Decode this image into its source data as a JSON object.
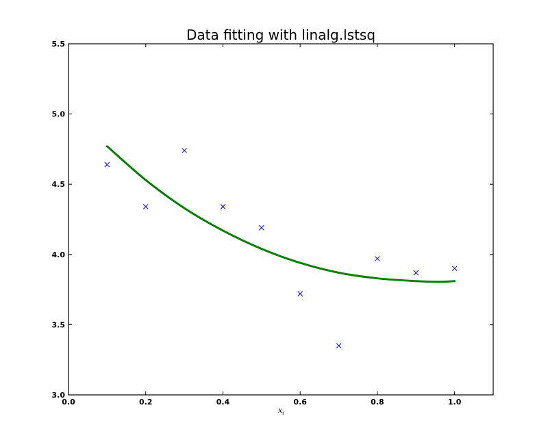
{
  "chart_data": {
    "type": "scatter",
    "title": "Data fitting with linalg.lstsq",
    "xlabel": "x",
    "xlabel_subscript": "i",
    "ylabel": "",
    "xlim": [
      0.0,
      1.1
    ],
    "ylim": [
      3.0,
      5.5
    ],
    "xticks": [
      0.0,
      0.2,
      0.4,
      0.6,
      0.8,
      1.0
    ],
    "xtick_labels": [
      "0.0",
      "0.2",
      "0.4",
      "0.6",
      "0.8",
      "1.0"
    ],
    "yticks": [
      3.0,
      3.5,
      4.0,
      4.5,
      5.0,
      5.5
    ],
    "ytick_labels": [
      "3.0",
      "3.5",
      "4.0",
      "4.5",
      "5.0",
      "5.5"
    ],
    "grid": false,
    "series": [
      {
        "type": "scatter",
        "marker": "x",
        "color": "#0000ff",
        "x": [
          0.1,
          0.2,
          0.3,
          0.4,
          0.5,
          0.6,
          0.7,
          0.8,
          0.9,
          1.0
        ],
        "y": [
          4.64,
          4.34,
          4.74,
          4.34,
          4.19,
          3.72,
          3.35,
          3.97,
          3.87,
          3.9
        ]
      },
      {
        "type": "line",
        "color": "#007f00",
        "x": [
          0.1,
          0.2,
          0.3,
          0.4,
          0.5,
          0.6,
          0.7,
          0.8,
          0.9,
          0.96,
          1.0
        ],
        "y": [
          4.77,
          4.53,
          4.33,
          4.17,
          4.04,
          3.94,
          3.87,
          3.83,
          3.81,
          3.805,
          3.81
        ]
      }
    ]
  }
}
